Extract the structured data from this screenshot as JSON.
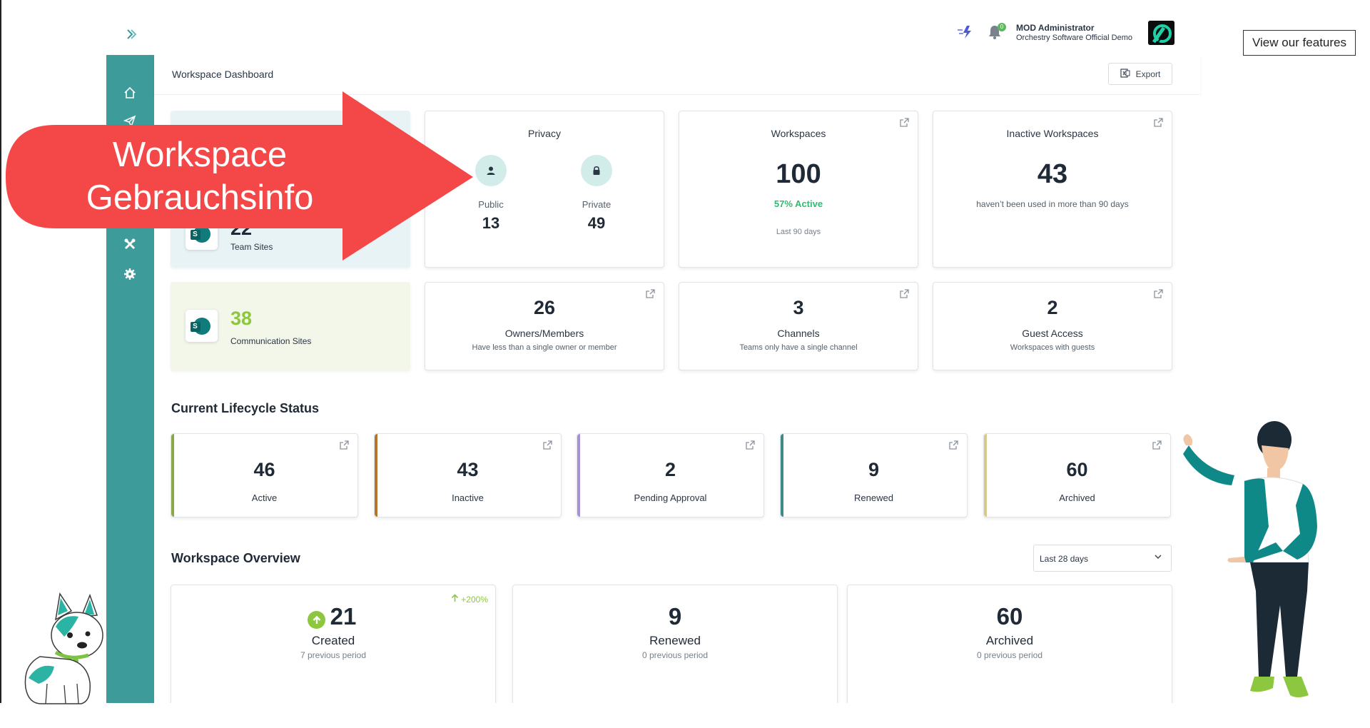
{
  "header": {
    "user_name": "MOD Administrator",
    "user_org": "Orchestry Software Official Demo",
    "notification_count": "0",
    "features_button": "View our features"
  },
  "page": {
    "title": "Workspace Dashboard",
    "export_label": "Export"
  },
  "overlay": {
    "line1": "Workspace",
    "line2": "Gebrauchsinfo"
  },
  "sites": {
    "team_value": "22",
    "team_label": "Team Sites",
    "comm_value": "38",
    "comm_label": "Communication Sites"
  },
  "privacy": {
    "title": "Privacy",
    "public_label": "Public",
    "public_value": "13",
    "private_label": "Private",
    "private_value": "49"
  },
  "workspaces": {
    "title": "Workspaces",
    "value": "100",
    "active_text": "57% Active",
    "period": "Last 90 days"
  },
  "inactive": {
    "title": "Inactive Workspaces",
    "value": "43",
    "sub": "haven’t been used in more than 90 days"
  },
  "owners": {
    "value": "26",
    "title": "Owners/Members",
    "sub": "Have less than a single owner or member"
  },
  "channels": {
    "value": "3",
    "title": "Channels",
    "sub": "Teams only have a single channel"
  },
  "guests": {
    "value": "2",
    "title": "Guest Access",
    "sub": "Workspaces with guests"
  },
  "lifecycle": {
    "title": "Current Lifecycle Status",
    "items": [
      {
        "value": "46",
        "label": "Active",
        "color": "#8aa84a"
      },
      {
        "value": "43",
        "label": "Inactive",
        "color": "#b5742a"
      },
      {
        "value": "2",
        "label": "Pending Approval",
        "color": "#a98fd8"
      },
      {
        "value": "9",
        "label": "Renewed",
        "color": "#3d8a88"
      },
      {
        "value": "60",
        "label": "Archived",
        "color": "#d8c98a"
      }
    ]
  },
  "overview": {
    "title": "Workspace Overview",
    "range": "Last 28 days",
    "created": {
      "value": "21",
      "label": "Created",
      "sub": "7 previous period",
      "change": "+200%"
    },
    "renewed": {
      "value": "9",
      "label": "Renewed",
      "sub": "0 previous period"
    },
    "archived": {
      "value": "60",
      "label": "Archived",
      "sub": "0 previous period"
    }
  },
  "colors": {
    "sidebar": "#3d9b99",
    "accent_green": "#8dc63f",
    "active_green": "#2dbd6e",
    "arrow_red": "#f44848"
  },
  "icons": [
    "chevron-right-icon",
    "flash-icon",
    "bell-icon",
    "home-icon",
    "send-icon",
    "tools-icon",
    "gear-icon",
    "export-icon",
    "external-link-icon",
    "user-icon",
    "lock-icon",
    "arrow-up-icon",
    "chevron-down-icon",
    "sharepoint-icon"
  ]
}
